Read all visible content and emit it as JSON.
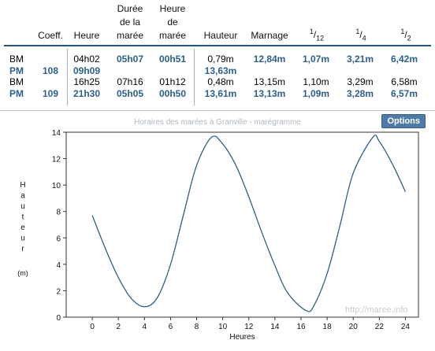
{
  "table": {
    "headers": {
      "coeff": "Coeff.",
      "heure": "Heure",
      "duree": [
        "Durée",
        "de la",
        "marée"
      ],
      "heure_maree": [
        "Heure",
        "de",
        "marée"
      ],
      "hauteur": "Hauteur",
      "marnage": "Marnage",
      "twelfth": {
        "num": "1",
        "den": "12"
      },
      "quarter": {
        "num": "1",
        "den": "4"
      },
      "half": {
        "num": "1",
        "den": "2"
      }
    },
    "rows": [
      {
        "type": "BM",
        "coeff": "",
        "heure": "04h02",
        "duree": "05h07",
        "heure_maree": "00h51",
        "hauteur": "0,79m",
        "marnage": "12,84m",
        "twelfth": "1,07m",
        "quarter": "3,21m",
        "half": "6,42m",
        "bold": false
      },
      {
        "type": "PM",
        "coeff": "108",
        "heure": "09h09",
        "duree": "",
        "heure_maree": "",
        "hauteur": "13,63m",
        "marnage": "",
        "twelfth": "",
        "quarter": "",
        "half": "",
        "bold": true
      },
      {
        "type": "BM",
        "coeff": "",
        "heure": "16h25",
        "duree": "07h16",
        "heure_maree": "01h12",
        "hauteur": "0,48m",
        "marnage": "13,15m",
        "twelfth": "1,10m",
        "quarter": "3,29m",
        "half": "6,58m",
        "bold": false
      },
      {
        "type": "PM",
        "coeff": "109",
        "heure": "21h30",
        "duree": "05h05",
        "heure_maree": "00h50",
        "hauteur": "13,61m",
        "marnage": "13,13m",
        "twelfth": "1,09m",
        "quarter": "3,28m",
        "half": "6,57m",
        "bold": true
      }
    ]
  },
  "chart_title": "Horaires des marées à Granville - marégramme",
  "options_label": "Options",
  "watermark": "http://maree.info",
  "chart_data": {
    "type": "line",
    "title": "Horaires des marées à Granville - marégramme",
    "xlabel": "Heures",
    "ylabel": "Hauteur (m)",
    "ylabel_letters": [
      "H",
      "a",
      "u",
      "t",
      "e",
      "u",
      "r"
    ],
    "ylabel_unit": "(m)",
    "xlim": [
      -2,
      25
    ],
    "ylim": [
      0,
      14
    ],
    "xticks": [
      0,
      2,
      4,
      6,
      8,
      10,
      12,
      14,
      16,
      18,
      20,
      22,
      24
    ],
    "yticks": [
      0,
      2,
      4,
      6,
      8,
      10,
      12,
      14
    ],
    "grid": false,
    "line_color": "#2c5f8d",
    "series": [
      {
        "name": "",
        "x": [
          0,
          1,
          2,
          3,
          4.03,
          5,
          6,
          7,
          8,
          9.15,
          10,
          11,
          12,
          13,
          14,
          15,
          16.42,
          17,
          18,
          19,
          20,
          21.5,
          22,
          23,
          24
        ],
        "y": [
          7.7,
          5.2,
          3.0,
          1.4,
          0.79,
          1.5,
          4.0,
          7.8,
          11.5,
          13.63,
          13.1,
          11.5,
          9.1,
          6.4,
          3.9,
          1.8,
          0.48,
          0.9,
          3.3,
          7.0,
          10.9,
          13.61,
          13.3,
          11.6,
          9.5
        ]
      }
    ]
  }
}
